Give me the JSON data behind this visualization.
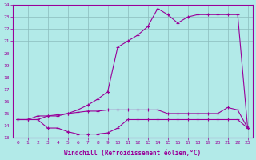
{
  "xlabel": "Windchill (Refroidissement éolien,°C)",
  "background_color": "#b2eae8",
  "grid_color": "#8bbcbc",
  "line_color": "#990099",
  "xmin": 0,
  "xmax": 23,
  "ymin": 13,
  "ymax": 24,
  "yticks": [
    13,
    14,
    15,
    16,
    17,
    18,
    19,
    20,
    21,
    22,
    23,
    24
  ],
  "xticks": [
    0,
    1,
    2,
    3,
    4,
    5,
    6,
    7,
    8,
    9,
    10,
    11,
    12,
    13,
    14,
    15,
    16,
    17,
    18,
    19,
    20,
    21,
    22,
    23
  ],
  "line1_x": [
    0,
    1,
    2,
    3,
    4,
    5,
    6,
    7,
    8,
    9,
    10,
    11,
    12,
    13,
    14,
    15,
    16,
    17,
    18,
    19,
    20,
    21,
    22,
    23
  ],
  "line1_y": [
    14.5,
    14.5,
    14.5,
    14.8,
    14.8,
    15.0,
    15.3,
    15.7,
    16.2,
    16.8,
    20.5,
    21.0,
    21.5,
    22.2,
    23.7,
    23.2,
    22.5,
    23.0,
    23.2,
    23.2,
    23.2,
    23.2,
    23.2,
    13.8
  ],
  "line2_x": [
    0,
    1,
    2,
    3,
    4,
    5,
    6,
    7,
    8,
    9,
    10,
    11,
    12,
    13,
    14,
    15,
    16,
    17,
    18,
    19,
    20,
    21,
    22,
    23
  ],
  "line2_y": [
    14.5,
    14.5,
    14.8,
    14.8,
    14.9,
    15.0,
    15.1,
    15.2,
    15.2,
    15.3,
    15.3,
    15.3,
    15.3,
    15.3,
    15.3,
    15.0,
    15.0,
    15.0,
    15.0,
    15.0,
    15.0,
    15.5,
    15.3,
    13.8
  ],
  "line3_x": [
    0,
    1,
    2,
    3,
    4,
    5,
    6,
    7,
    8,
    9,
    10,
    11,
    12,
    13,
    14,
    15,
    16,
    17,
    18,
    19,
    20,
    21,
    22,
    23
  ],
  "line3_y": [
    14.5,
    14.5,
    14.5,
    13.8,
    13.8,
    13.5,
    13.3,
    13.3,
    13.3,
    13.4,
    13.8,
    14.5,
    14.5,
    14.5,
    14.5,
    14.5,
    14.5,
    14.5,
    14.5,
    14.5,
    14.5,
    14.5,
    14.5,
    13.8
  ]
}
